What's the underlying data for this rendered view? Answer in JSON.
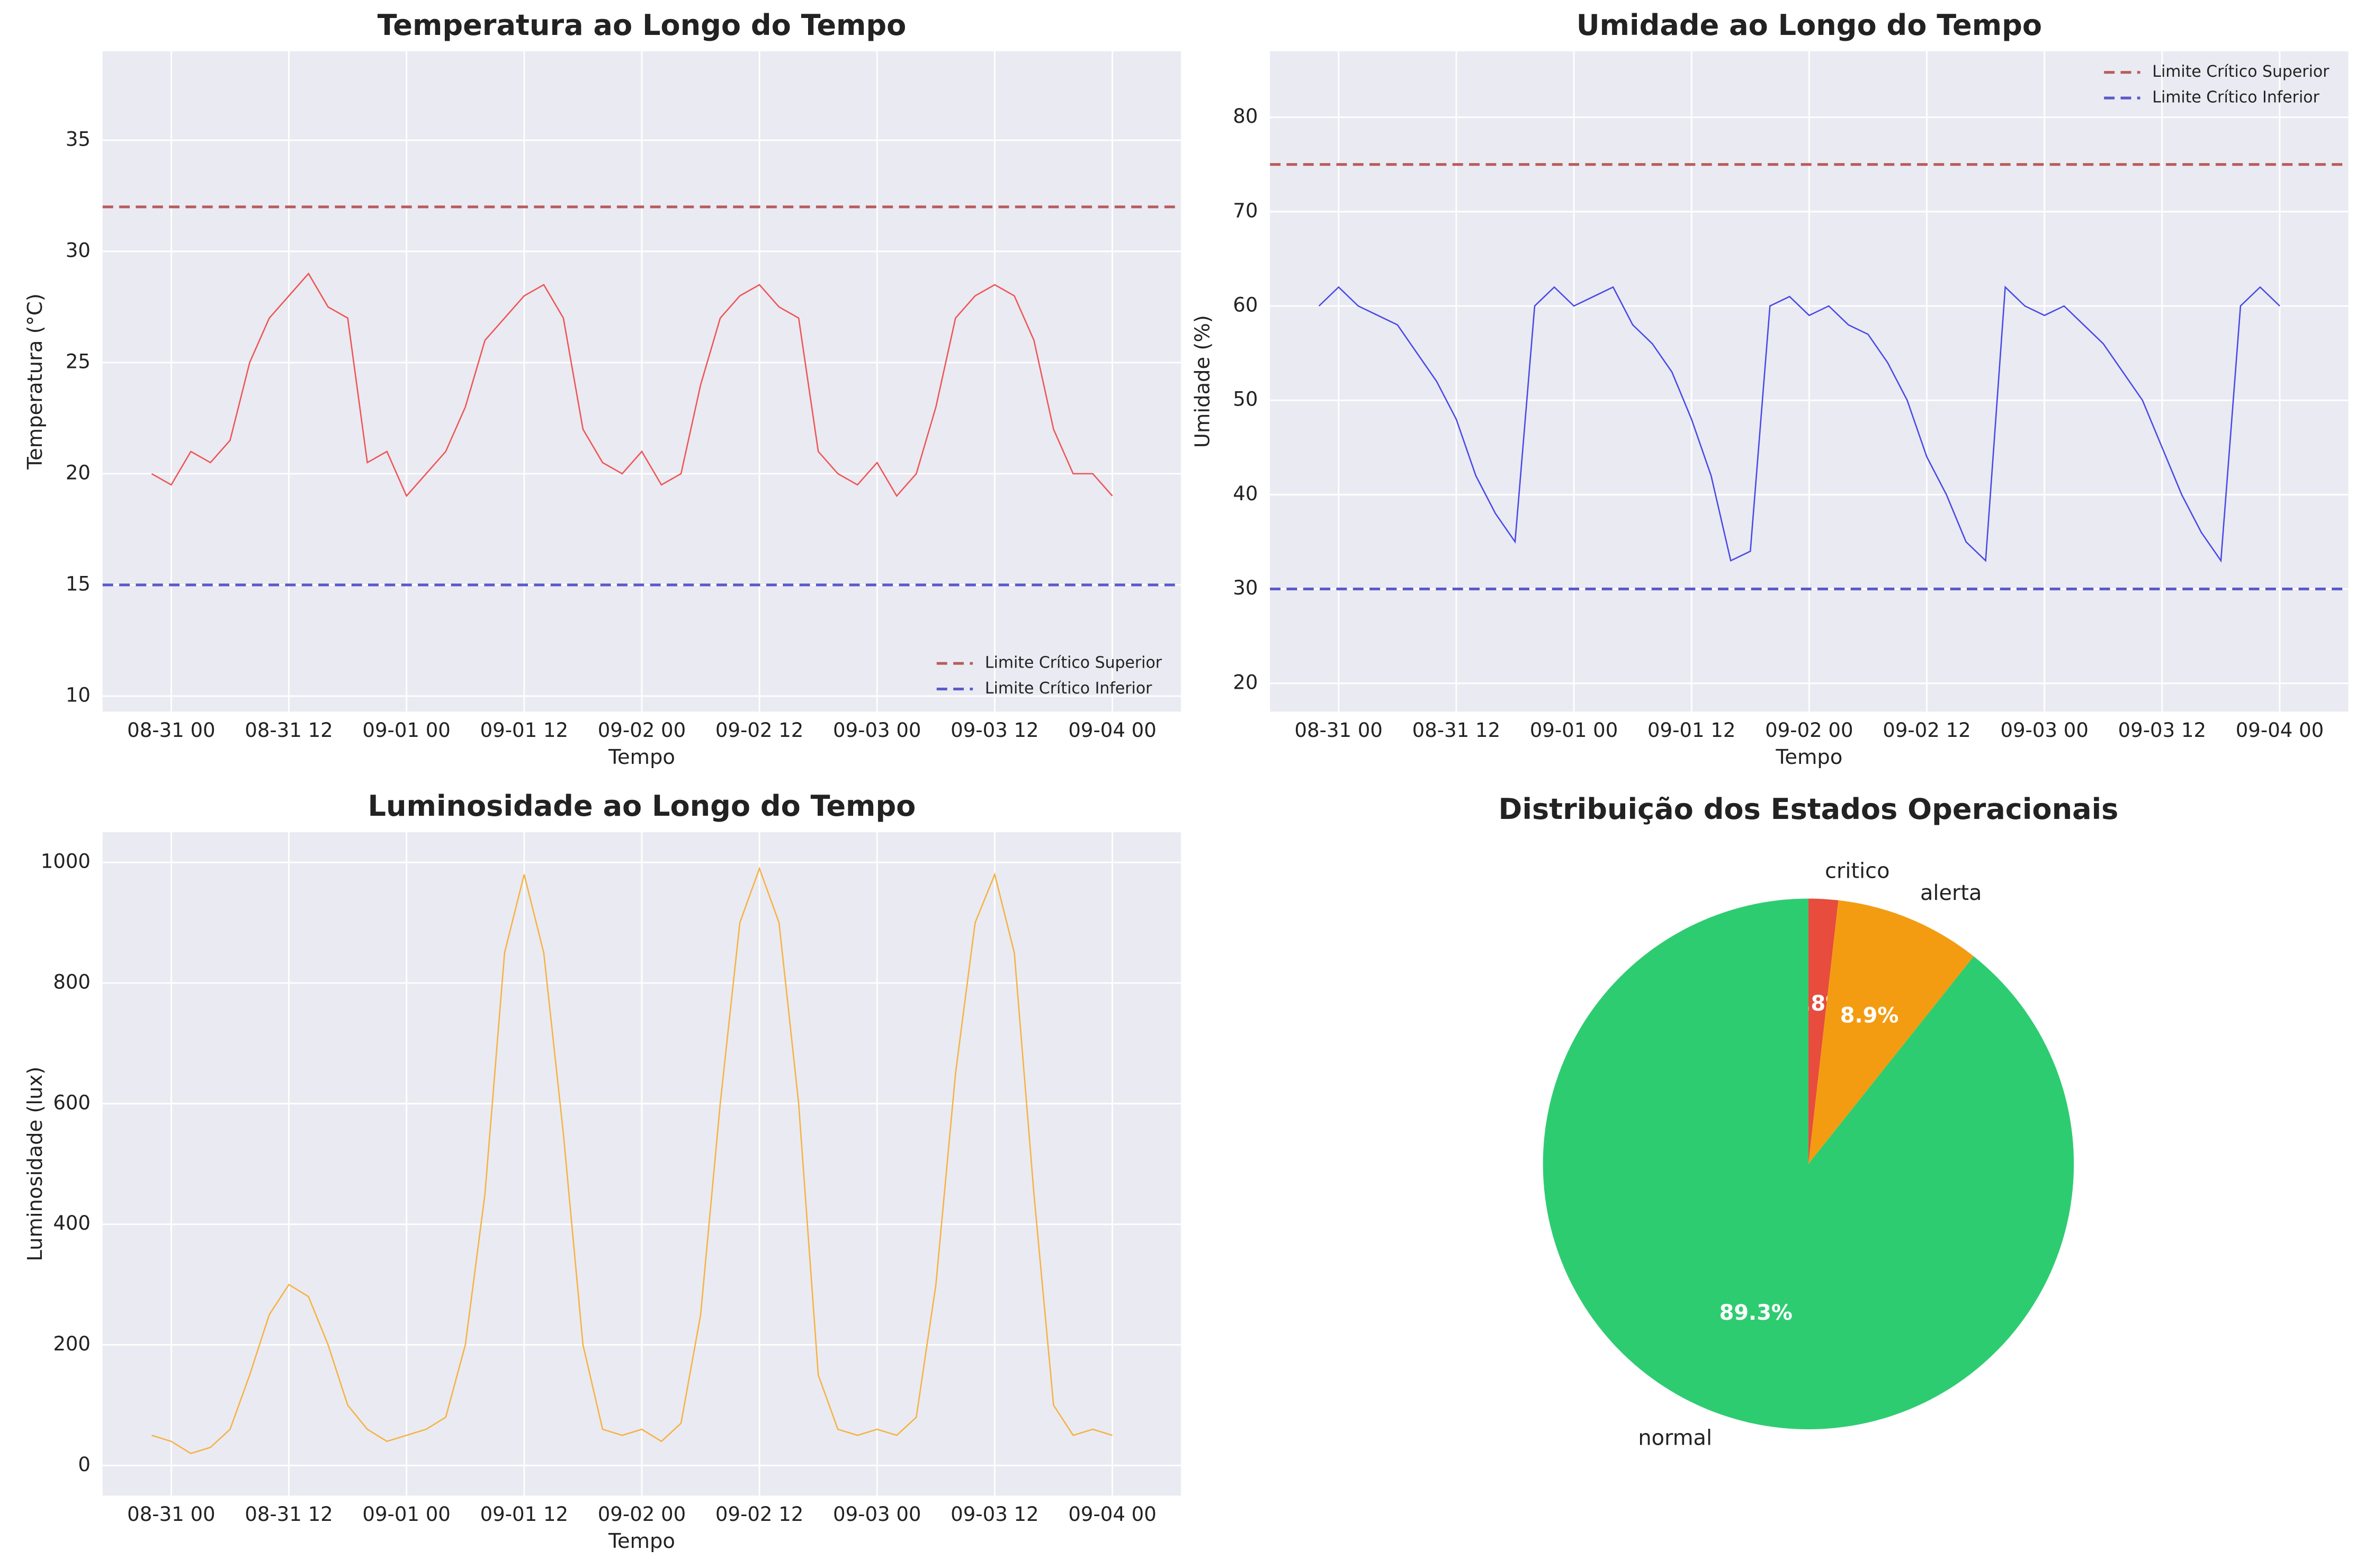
{
  "chart_data": [
    {
      "type": "line",
      "title": "Temperatura ao Longo do Tempo",
      "xlabel": "Tempo",
      "ylabel": "Temperatura (°C)",
      "x": [
        "08-30 22",
        "08-31 00",
        "08-31 02",
        "08-31 04",
        "08-31 06",
        "08-31 08",
        "08-31 10",
        "08-31 12",
        "08-31 14",
        "08-31 16",
        "08-31 18",
        "08-31 20",
        "08-31 22",
        "09-01 00",
        "09-01 02",
        "09-01 04",
        "09-01 06",
        "09-01 08",
        "09-01 10",
        "09-01 12",
        "09-01 14",
        "09-01 16",
        "09-01 18",
        "09-01 20",
        "09-01 22",
        "09-02 00",
        "09-02 02",
        "09-02 04",
        "09-02 06",
        "09-02 08",
        "09-02 10",
        "09-02 12",
        "09-02 14",
        "09-02 16",
        "09-02 18",
        "09-02 20",
        "09-02 22",
        "09-03 00",
        "09-03 02",
        "09-03 04",
        "09-03 06",
        "09-03 08",
        "09-03 10",
        "09-03 12",
        "09-03 14",
        "09-03 16",
        "09-03 18",
        "09-03 20",
        "09-03 22",
        "09-04 00"
      ],
      "series": [
        {
          "color": "#ee5555",
          "values": [
            20,
            19.5,
            21,
            20.5,
            21.5,
            25,
            27,
            28,
            29,
            27.5,
            27,
            20.5,
            21,
            19,
            20,
            21,
            23,
            26,
            27,
            28,
            28.5,
            27,
            22,
            20.5,
            20,
            21,
            19.5,
            20,
            24,
            27,
            28,
            28.5,
            27.5,
            27,
            21,
            20,
            19.5,
            20.5,
            19,
            20,
            23,
            27,
            28,
            28.5,
            28,
            26,
            22,
            20,
            20,
            19
          ]
        }
      ],
      "reference_lines": [
        {
          "name": "Limite Crítico Superior",
          "color": "#b85c5c",
          "value": 32
        },
        {
          "name": "Limite Crítico Inferior",
          "color": "#5a5ac8",
          "value": 15
        }
      ],
      "legend": "lower right",
      "xlim": [
        "08-30 17",
        "09-04 07"
      ],
      "xticks": [
        "08-31 00",
        "08-31 12",
        "09-01 00",
        "09-01 12",
        "09-02 00",
        "09-02 12",
        "09-03 00",
        "09-03 12",
        "09-04 00"
      ],
      "ylim": [
        9.3,
        39
      ],
      "yticks": [
        10,
        15,
        20,
        25,
        30,
        35
      ],
      "grid": true
    },
    {
      "type": "line",
      "title": "Umidade ao Longo do Tempo",
      "xlabel": "Tempo",
      "ylabel": "Umidade (%)",
      "x": [
        "08-30 22",
        "08-31 00",
        "08-31 02",
        "08-31 04",
        "08-31 06",
        "08-31 08",
        "08-31 10",
        "08-31 12",
        "08-31 14",
        "08-31 16",
        "08-31 18",
        "08-31 20",
        "08-31 22",
        "09-01 00",
        "09-01 02",
        "09-01 04",
        "09-01 06",
        "09-01 08",
        "09-01 10",
        "09-01 12",
        "09-01 14",
        "09-01 16",
        "09-01 18",
        "09-01 20",
        "09-01 22",
        "09-02 00",
        "09-02 02",
        "09-02 04",
        "09-02 06",
        "09-02 08",
        "09-02 10",
        "09-02 12",
        "09-02 14",
        "09-02 16",
        "09-02 18",
        "09-02 20",
        "09-02 22",
        "09-03 00",
        "09-03 02",
        "09-03 04",
        "09-03 06",
        "09-03 08",
        "09-03 10",
        "09-03 12",
        "09-03 14",
        "09-03 16",
        "09-03 18",
        "09-03 20",
        "09-03 22",
        "09-04 00"
      ],
      "series": [
        {
          "color": "#4848e8",
          "values": [
            60,
            62,
            60,
            59,
            58,
            55,
            52,
            48,
            42,
            38,
            35,
            60,
            62,
            60,
            61,
            62,
            58,
            56,
            53,
            48,
            42,
            33,
            34,
            60,
            61,
            59,
            60,
            58,
            57,
            54,
            50,
            44,
            40,
            35,
            33,
            62,
            60,
            59,
            60,
            58,
            56,
            53,
            50,
            45,
            40,
            36,
            33,
            60,
            62,
            60
          ]
        }
      ],
      "reference_lines": [
        {
          "name": "Limite Crítico Superior",
          "color": "#b85c5c",
          "value": 75
        },
        {
          "name": "Limite Crítico Inferior",
          "color": "#5a5ac8",
          "value": 30
        }
      ],
      "legend": "upper right",
      "xlim": [
        "08-30 17",
        "09-04 07"
      ],
      "xticks": [
        "08-31 00",
        "08-31 12",
        "09-01 00",
        "09-01 12",
        "09-02 00",
        "09-02 12",
        "09-03 00",
        "09-03 12",
        "09-04 00"
      ],
      "ylim": [
        17,
        87
      ],
      "yticks": [
        20,
        30,
        40,
        50,
        60,
        70,
        80
      ],
      "grid": true
    },
    {
      "type": "line",
      "title": "Luminosidade ao Longo do Tempo",
      "xlabel": "Tempo",
      "ylabel": "Luminosidade (lux)",
      "x": [
        "08-30 22",
        "08-31 00",
        "08-31 02",
        "08-31 04",
        "08-31 06",
        "08-31 08",
        "08-31 10",
        "08-31 12",
        "08-31 14",
        "08-31 16",
        "08-31 18",
        "08-31 20",
        "08-31 22",
        "09-01 00",
        "09-01 02",
        "09-01 04",
        "09-01 06",
        "09-01 08",
        "09-01 10",
        "09-01 12",
        "09-01 14",
        "09-01 16",
        "09-01 18",
        "09-01 20",
        "09-01 22",
        "09-02 00",
        "09-02 02",
        "09-02 04",
        "09-02 06",
        "09-02 08",
        "09-02 10",
        "09-02 12",
        "09-02 14",
        "09-02 16",
        "09-02 18",
        "09-02 20",
        "09-02 22",
        "09-03 00",
        "09-03 02",
        "09-03 04",
        "09-03 06",
        "09-03 08",
        "09-03 10",
        "09-03 12",
        "09-03 14",
        "09-03 16",
        "09-03 18",
        "09-03 20",
        "09-03 22",
        "09-04 00"
      ],
      "series": [
        {
          "color": "#f5b342",
          "values": [
            50,
            40,
            20,
            30,
            60,
            150,
            250,
            300,
            280,
            200,
            100,
            60,
            40,
            50,
            60,
            80,
            200,
            450,
            850,
            980,
            850,
            550,
            200,
            60,
            50,
            60,
            40,
            70,
            250,
            600,
            900,
            990,
            900,
            600,
            150,
            60,
            50,
            60,
            50,
            80,
            300,
            650,
            900,
            980,
            850,
            450,
            100,
            50,
            60,
            50
          ]
        }
      ],
      "xlim": [
        "08-30 17",
        "09-04 07"
      ],
      "xticks": [
        "08-31 00",
        "08-31 12",
        "09-01 00",
        "09-01 12",
        "09-02 00",
        "09-02 12",
        "09-03 00",
        "09-03 12",
        "09-04 00"
      ],
      "ylim": [
        -50,
        1050
      ],
      "yticks": [
        0,
        200,
        400,
        600,
        800,
        1000
      ],
      "grid": true
    },
    {
      "type": "pie",
      "title": "Distribuição dos Estados Operacionais",
      "labels": [
        "critico",
        "alerta",
        "normal"
      ],
      "values": [
        1.8,
        8.9,
        89.3
      ],
      "value_labels": [
        "1.8%",
        "8.9%",
        "89.3%"
      ],
      "colors": [
        "#e74c3c",
        "#f39c12",
        "#2ecc71"
      ],
      "startangle": 90,
      "counterclock": false
    }
  ]
}
